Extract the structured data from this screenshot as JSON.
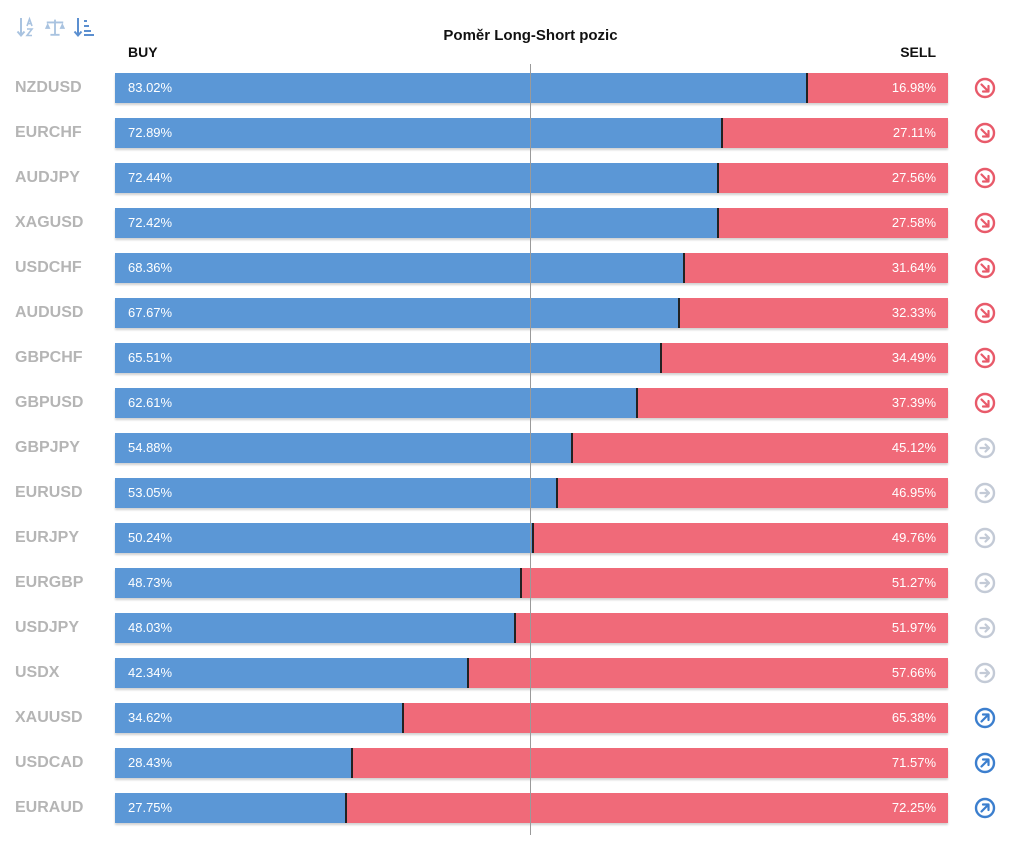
{
  "toolbar": {
    "buttons": [
      {
        "name": "sort-alpha-icon"
      },
      {
        "name": "balance-scale-icon"
      },
      {
        "name": "sort-amount-icon"
      }
    ]
  },
  "colors": {
    "buy": "#5b97d6",
    "sell": "#f06a79",
    "signal_sell": "#e85a6a",
    "signal_neutral": "#c3cad6",
    "signal_buy": "#3c7fce"
  },
  "chart_data": {
    "type": "bar",
    "title": "Poměr Long-Short pozic",
    "buy_label": "BUY",
    "sell_label": "SELL",
    "categories": [
      "NZDUSD",
      "EURCHF",
      "AUDJPY",
      "XAGUSD",
      "USDCHF",
      "AUDUSD",
      "GBPCHF",
      "GBPUSD",
      "GBPJPY",
      "EURUSD",
      "EURJPY",
      "EURGBP",
      "USDJPY",
      "USDX",
      "XAUUSD",
      "USDCAD",
      "EURAUD"
    ],
    "series": [
      {
        "name": "BUY",
        "values": [
          83.02,
          72.89,
          72.44,
          72.42,
          68.36,
          67.67,
          65.51,
          62.61,
          54.88,
          53.05,
          50.24,
          48.73,
          48.03,
          42.34,
          34.62,
          28.43,
          27.75
        ]
      },
      {
        "name": "SELL",
        "values": [
          16.98,
          27.11,
          27.56,
          27.58,
          31.64,
          32.33,
          34.49,
          37.39,
          45.12,
          46.95,
          49.76,
          51.27,
          51.97,
          57.66,
          65.38,
          71.57,
          72.25
        ]
      }
    ],
    "labels_buy": [
      "83.02%",
      "72.89%",
      "72.44%",
      "72.42%",
      "68.36%",
      "67.67%",
      "65.51%",
      "62.61%",
      "54.88%",
      "53.05%",
      "50.24%",
      "48.73%",
      "48.03%",
      "42.34%",
      "34.62%",
      "28.43%",
      "27.75%"
    ],
    "labels_sell": [
      "16.98%",
      "27.11%",
      "27.56%",
      "27.58%",
      "31.64%",
      "32.33%",
      "34.49%",
      "37.39%",
      "45.12%",
      "46.95%",
      "49.76%",
      "51.27%",
      "51.97%",
      "57.66%",
      "65.38%",
      "71.57%",
      "72.25%"
    ],
    "signals": [
      "sell",
      "sell",
      "sell",
      "sell",
      "sell",
      "sell",
      "sell",
      "sell",
      "neutral",
      "neutral",
      "neutral",
      "neutral",
      "neutral",
      "neutral",
      "buy",
      "buy",
      "buy"
    ],
    "xlim": [
      0,
      100
    ],
    "reference_line": 50,
    "orientation": "horizontal-stacked"
  }
}
